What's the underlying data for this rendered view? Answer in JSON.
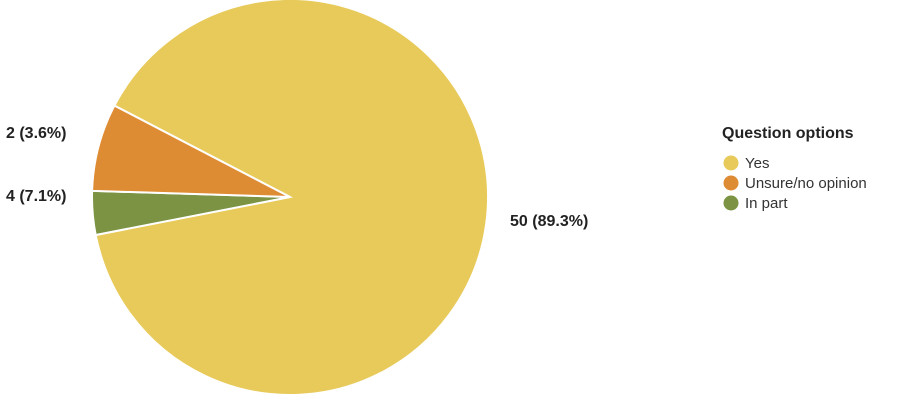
{
  "chart_data": {
    "type": "pie",
    "title": "",
    "legend": {
      "title": "Question options",
      "placement": "right"
    },
    "slices": [
      {
        "label": "Yes",
        "value": 50,
        "percent": 89.3,
        "display": "50 (89.3%)",
        "color": "#e8ca5a"
      },
      {
        "label": "In part",
        "value": 2,
        "percent": 3.6,
        "display": "2 (3.6%)",
        "color": "#7c9343"
      },
      {
        "label": "Unsure/no opinion",
        "value": 4,
        "percent": 7.1,
        "display": "4 (7.1%)",
        "color": "#de8c33"
      }
    ],
    "legend_order": [
      "Yes",
      "Unsure/no opinion",
      "In part"
    ]
  }
}
